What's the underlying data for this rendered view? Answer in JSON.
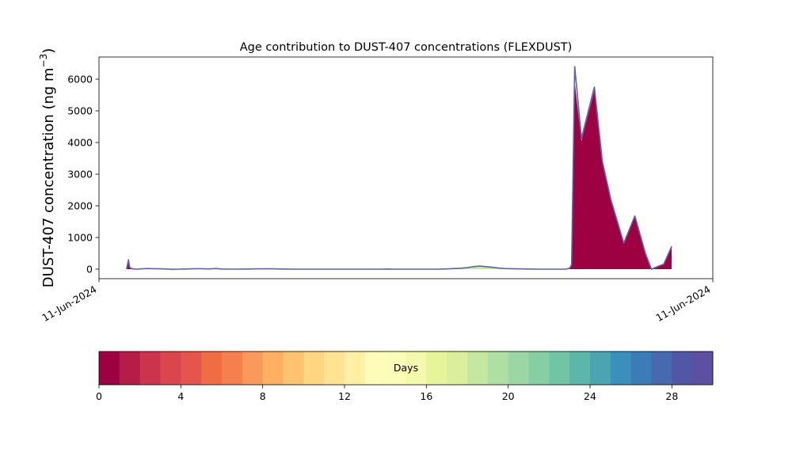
{
  "chart_data": {
    "type": "area",
    "title": "Age contribution to DUST-407 concentrations (FLEXDUST)",
    "ylabel_main": "DUST-407 concentration (ng m",
    "ylabel_unit_sup": "−3",
    "ylabel_close": ")",
    "xlabel": "",
    "xlim": [
      0,
      100
    ],
    "ylim": [
      -300,
      6700
    ],
    "yticks": [
      0,
      1000,
      2000,
      3000,
      4000,
      5000,
      6000
    ],
    "xticklabels": [
      "11-Jun-2024",
      "11-Jun-2024"
    ],
    "x": [
      0,
      4.5,
      4.8,
      5,
      5.5,
      6,
      7,
      8,
      9,
      10,
      11,
      12,
      13,
      14,
      15,
      16,
      17,
      18,
      19,
      20,
      22,
      24,
      26,
      28,
      30,
      32,
      34,
      36,
      38,
      40,
      42,
      44,
      45,
      46,
      47,
      48,
      49,
      50,
      51,
      52,
      53,
      54,
      55,
      56,
      57,
      58,
      59,
      60,
      61,
      62,
      63,
      64,
      65,
      66,
      68,
      70,
      72,
      74,
      76,
      76.7,
      77,
      77.5,
      78.6,
      80.7,
      82,
      83.4,
      85.5,
      87.3,
      89,
      90,
      90.8,
      91,
      92,
      93.3,
      95,
      95.1,
      100
    ],
    "series": [
      {
        "age_days": 0,
        "values": [
          null,
          0,
          300,
          50,
          10,
          0,
          10,
          20,
          15,
          10,
          5,
          -5,
          0,
          5,
          10,
          15,
          12,
          8,
          20,
          5,
          0,
          5,
          10,
          10,
          5,
          0,
          0,
          0,
          0,
          0,
          0,
          0,
          0,
          0,
          5,
          0,
          0,
          0,
          0,
          0,
          0,
          0,
          0,
          0,
          0,
          0,
          0,
          0,
          0,
          0,
          0,
          0,
          0,
          0,
          0,
          0,
          0,
          0,
          0,
          30,
          150,
          5900,
          4050,
          5650,
          3350,
          2150,
          800,
          1650,
          500,
          0,
          60,
          80,
          150,
          700,
          null,
          null,
          null
        ]
      },
      {
        "age_days": 18,
        "values": [
          null,
          0,
          0,
          0,
          0,
          0,
          0,
          0,
          0,
          0,
          0,
          0,
          0,
          0,
          0,
          0,
          0,
          0,
          0,
          0,
          0,
          0,
          0,
          0,
          0,
          0,
          0,
          0,
          0,
          0,
          0,
          0,
          0,
          0,
          0,
          0,
          0,
          0,
          0,
          0,
          0,
          0,
          0,
          5,
          10,
          20,
          30,
          50,
          80,
          100,
          80,
          60,
          40,
          20,
          10,
          5,
          0,
          0,
          0,
          0,
          0,
          0,
          0,
          0,
          0,
          0,
          0,
          0,
          0,
          0,
          0,
          0,
          0,
          0,
          null,
          null,
          null
        ]
      },
      {
        "age_days": 30,
        "values": [
          null,
          0,
          0,
          0,
          0,
          0,
          0,
          0,
          0,
          0,
          0,
          0,
          0,
          0,
          0,
          0,
          0,
          0,
          0,
          0,
          0,
          0,
          0,
          0,
          0,
          0,
          0,
          0,
          0,
          0,
          0,
          0,
          0,
          0,
          0,
          0,
          0,
          0,
          0,
          0,
          0,
          0,
          0,
          0,
          0,
          0,
          0,
          0,
          0,
          0,
          0,
          0,
          0,
          0,
          0,
          0,
          0,
          0,
          0,
          0,
          0,
          500,
          80,
          100,
          60,
          40,
          20,
          30,
          10,
          0,
          5,
          5,
          5,
          20,
          null,
          null,
          null
        ]
      }
    ],
    "total": [
      null,
      0,
      300,
      50,
      10,
      0,
      10,
      20,
      15,
      10,
      5,
      -5,
      0,
      5,
      10,
      15,
      12,
      8,
      20,
      5,
      0,
      5,
      10,
      10,
      5,
      0,
      0,
      0,
      0,
      0,
      0,
      0,
      0,
      0,
      5,
      0,
      0,
      0,
      0,
      0,
      0,
      0,
      0,
      5,
      10,
      20,
      30,
      50,
      80,
      100,
      80,
      60,
      40,
      20,
      10,
      5,
      0,
      0,
      0,
      30,
      150,
      6400,
      4130,
      5750,
      3410,
      2190,
      820,
      1680,
      510,
      0,
      65,
      85,
      155,
      720,
      null,
      null,
      null
    ],
    "colorbar": {
      "label": "Days",
      "ticks": [
        0,
        4,
        8,
        12,
        16,
        20,
        24,
        28
      ],
      "range": [
        0,
        30
      ],
      "segments": 30,
      "colors": [
        "#9e0142",
        "#b51c46",
        "#cc334c",
        "#db454c",
        "#e6554b",
        "#f06c45",
        "#f6804d",
        "#f99a5c",
        "#fdaf62",
        "#fdc373",
        "#fed682",
        "#fee492",
        "#fff0a6",
        "#fffbb8",
        "#fbfdb7",
        "#f3faad",
        "#e7f59a",
        "#d8ef9c",
        "#c5e8a0",
        "#b0dfa3",
        "#9bd6a4",
        "#86cea4",
        "#71c5a5",
        "#5db6aa",
        "#4aa4b2",
        "#3a8fbb",
        "#3a7cb8",
        "#4769b0",
        "#5157a7",
        "#5e4fa2"
      ]
    },
    "grid": false,
    "legend": "none"
  }
}
